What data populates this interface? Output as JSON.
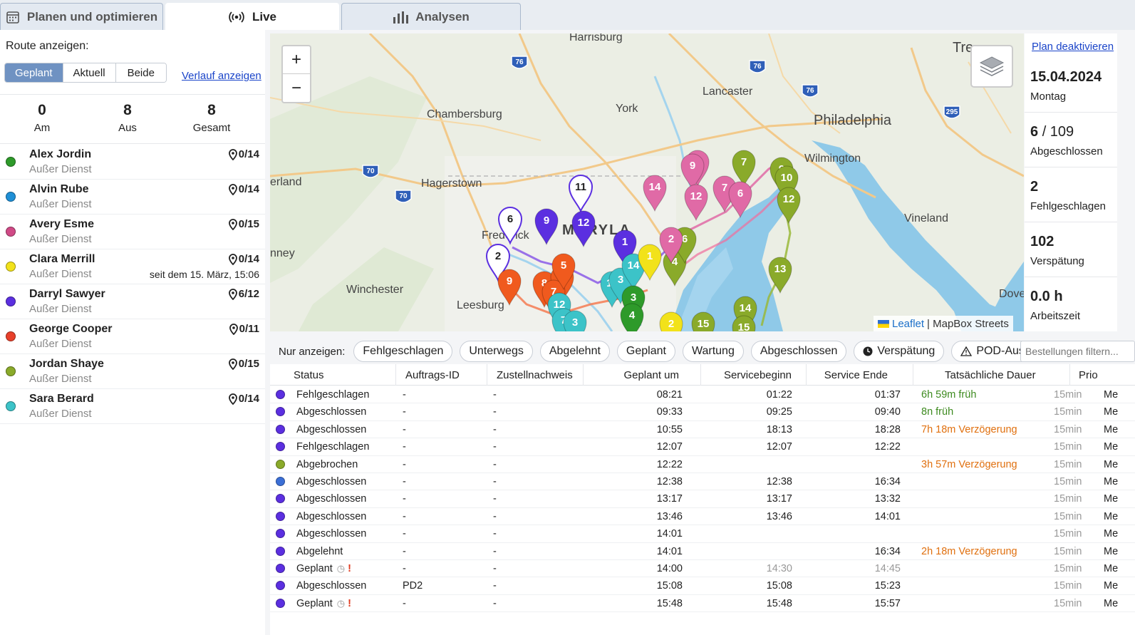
{
  "tabs": [
    {
      "label": "Planen und optimieren",
      "icon": "calendar-icon"
    },
    {
      "label": "Live",
      "icon": "broadcast-icon"
    },
    {
      "label": "Analysen",
      "icon": "bar-chart-icon"
    }
  ],
  "left": {
    "route_label": "Route anzeigen:",
    "segments": [
      "Geplant",
      "Aktuell",
      "Beide"
    ],
    "history_link": "Verlauf anzeigen",
    "counts": [
      {
        "value": "0",
        "label": "Am"
      },
      {
        "value": "8",
        "label": "Aus"
      },
      {
        "value": "8",
        "label": "Gesamt"
      }
    ],
    "drivers": [
      {
        "name": "Alex Jordin",
        "status": "Außer Dienst",
        "count": "0/14",
        "color": "#2e9a2a",
        "note": ""
      },
      {
        "name": "Alvin Rube",
        "status": "Außer Dienst",
        "count": "0/14",
        "color": "#1e8fd6",
        "note": ""
      },
      {
        "name": "Avery Esme",
        "status": "Außer Dienst",
        "count": "0/15",
        "color": "#d04a86",
        "note": ""
      },
      {
        "name": "Clara Merrill",
        "status": "Außer Dienst",
        "count": "0/14",
        "color": "#f2e21a",
        "note": "seit dem 15. März, 15:06"
      },
      {
        "name": "Darryl Sawyer",
        "status": "Außer Dienst",
        "count": "6/12",
        "color": "#5b2fe0",
        "note": ""
      },
      {
        "name": "George Cooper",
        "status": "Außer Dienst",
        "count": "0/11",
        "color": "#e8402a",
        "note": ""
      },
      {
        "name": "Jordan Shaye",
        "status": "Außer Dienst",
        "count": "0/15",
        "color": "#8aaa2a",
        "note": ""
      },
      {
        "name": "Sara Berard",
        "status": "Außer Dienst",
        "count": "0/14",
        "color": "#3cc3c8",
        "note": ""
      }
    ]
  },
  "map": {
    "zoom_in": "+",
    "zoom_out": "−",
    "attribution_leaflet": "Leaflet",
    "attribution_rest": "| MapBox Streets",
    "places": [
      {
        "name": "Harrisburg"
      },
      {
        "name": "Lancaster"
      },
      {
        "name": "York"
      },
      {
        "name": "Chambersburg"
      },
      {
        "name": "Philadelphia"
      },
      {
        "name": "Wilmington"
      },
      {
        "name": "Hagerstown"
      },
      {
        "name": "Frederick"
      },
      {
        "name": "MARYLA"
      },
      {
        "name": "Vineland"
      },
      {
        "name": "Winchester"
      },
      {
        "name": "Leesburg"
      },
      {
        "name": "Dover"
      },
      {
        "name": "Tre"
      },
      {
        "name": "erland"
      },
      {
        "name": "nney"
      }
    ],
    "shields": [
      "76",
      "76",
      "76",
      "295",
      "70",
      "70"
    ]
  },
  "right": {
    "plan_link": "Plan deaktivieren",
    "date": "15.04.2024",
    "weekday": "Montag",
    "completed_value": "6",
    "completed_total": "/ 109",
    "completed_label": "Abgeschlossen",
    "failed_value": "2",
    "failed_label": "Fehlgeschlagen",
    "late_value": "102",
    "late_label": "Verspätung",
    "hours_value": "0.0 h",
    "hours_label": "Arbeitszeit"
  },
  "filters": {
    "label": "Nur anzeigen:",
    "chips": [
      "Fehlgeschlagen",
      "Unterwegs",
      "Abgelehnt",
      "Geplant",
      "Wartung",
      "Abgeschlossen",
      "Verspätung",
      "POD-Ausnahmen"
    ],
    "search_placeholder": "Bestellungen filtern..."
  },
  "table": {
    "headers": [
      "Status",
      "Auftrags-ID",
      "Zustellnachweis",
      "Geplant um",
      "Servicebeginn",
      "Service Ende",
      "Tatsächliche Dauer",
      "Prio"
    ],
    "rows": [
      {
        "dot": "#5b2fe0",
        "status": "Fehlgeschlagen",
        "id": "-",
        "pod": "-",
        "planned": "08:21",
        "start": "01:22",
        "end": "01:37",
        "delta": "6h 59m früh",
        "tone": "green",
        "dur": "15min",
        "prio": "Me",
        "flag": false
      },
      {
        "dot": "#5b2fe0",
        "status": "Abgeschlossen",
        "id": "-",
        "pod": "-",
        "planned": "09:33",
        "start": "09:25",
        "end": "09:40",
        "delta": "8n  früh",
        "tone": "green",
        "dur": "15min",
        "prio": "Me",
        "flag": false
      },
      {
        "dot": "#5b2fe0",
        "status": "Abgeschlossen",
        "id": "-",
        "pod": "-",
        "planned": "10:55",
        "start": "18:13",
        "end": "18:28",
        "delta": "7h 18m Verzögerung",
        "tone": "orange",
        "dur": "15min",
        "prio": "Me",
        "flag": false
      },
      {
        "dot": "#5b2fe0",
        "status": "Fehlgeschlagen",
        "id": "-",
        "pod": "-",
        "planned": "12:07",
        "start": "12:07",
        "end": "12:22",
        "delta": "",
        "tone": "",
        "dur": "15min",
        "prio": "Me",
        "flag": false
      },
      {
        "dot": "#8aaa2a",
        "status": "Abgebrochen",
        "id": "-",
        "pod": "-",
        "planned": "12:22",
        "start": "",
        "end": "",
        "delta": "3h 57m Verzögerung",
        "tone": "orange",
        "dur": "15min",
        "prio": "Me",
        "flag": false
      },
      {
        "dot": "#3b6fd6",
        "status": "Abgeschlossen",
        "id": "-",
        "pod": "-",
        "planned": "12:38",
        "start": "12:38",
        "end": "16:34",
        "delta": "",
        "tone": "",
        "dur": "15min",
        "prio": "Me",
        "flag": false
      },
      {
        "dot": "#5b2fe0",
        "status": "Abgeschlossen",
        "id": "-",
        "pod": "-",
        "planned": "13:17",
        "start": "13:17",
        "end": "13:32",
        "delta": "",
        "tone": "",
        "dur": "15min",
        "prio": "Me",
        "flag": false
      },
      {
        "dot": "#5b2fe0",
        "status": "Abgeschlossen",
        "id": "-",
        "pod": "-",
        "planned": "13:46",
        "start": "13:46",
        "end": "14:01",
        "delta": "",
        "tone": "",
        "dur": "15min",
        "prio": "Me",
        "flag": false
      },
      {
        "dot": "#5b2fe0",
        "status": "Abgeschlossen",
        "id": "-",
        "pod": "-",
        "planned": "14:01",
        "start": "",
        "end": "",
        "delta": "",
        "tone": "",
        "dur": "15min",
        "prio": "Me",
        "flag": false
      },
      {
        "dot": "#5b2fe0",
        "status": "Abgelehnt",
        "id": "-",
        "pod": "-",
        "planned": "14:01",
        "start": "",
        "end": "16:34",
        "delta": "2h 18m Verzögerung",
        "tone": "orange",
        "dur": "15min",
        "prio": "Me",
        "flag": false
      },
      {
        "dot": "#5b2fe0",
        "status": "Geplant",
        "id": "-",
        "pod": "-",
        "planned": "14:00",
        "start": "14:30",
        "end": "14:45",
        "delta": "",
        "tone": "",
        "dur": "15min",
        "prio": "Me",
        "flag": true,
        "gray_times": true
      },
      {
        "dot": "#5b2fe0",
        "status": "Abgeschlossen",
        "id": "PD2",
        "pod": "-",
        "planned": "15:08",
        "start": "15:08",
        "end": "15:23",
        "delta": "",
        "tone": "",
        "dur": "15min",
        "prio": "Me",
        "flag": false
      },
      {
        "dot": "#5b2fe0",
        "status": "Geplant",
        "id": "-",
        "pod": "-",
        "planned": "15:48",
        "start": "15:48",
        "end": "15:57",
        "delta": "",
        "tone": "",
        "dur": "15min",
        "prio": "Me",
        "flag": true
      }
    ]
  }
}
